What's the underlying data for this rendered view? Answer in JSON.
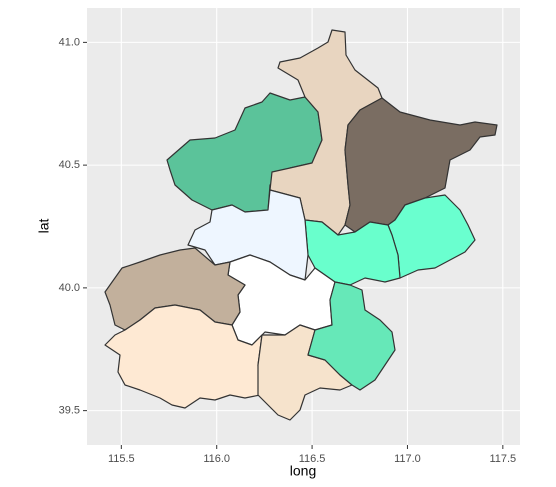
{
  "chart_data": {
    "type": "polygon",
    "xlabel": "long",
    "ylabel": "lat",
    "xlim": [
      115.32,
      117.59
    ],
    "ylim": [
      39.36,
      41.14
    ],
    "xticks": [
      115.5,
      {
        "value": 116,
        "label": "116.0"
      },
      116.5,
      {
        "value": 117,
        "label": "117.0"
      },
      117.5
    ],
    "yticks": [
      39.5,
      {
        "value": 40,
        "label": "40.0"
      },
      40.5,
      {
        "value": 41,
        "label": "41.0"
      }
    ],
    "grid": true
  }
}
